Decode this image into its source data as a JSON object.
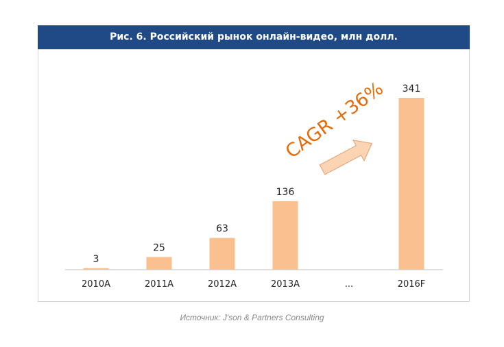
{
  "chart_data": {
    "type": "bar",
    "title": "Рис. 6. Российский рынок онлайн-видео, млн долл.",
    "categories": [
      "2010A",
      "2011A",
      "2012A",
      "2013A",
      "...",
      "2016F"
    ],
    "values": [
      3,
      25,
      63,
      136,
      null,
      341
    ],
    "xlabel": "",
    "ylabel": "",
    "ylim": [
      0,
      341
    ],
    "annotation": "CAGR +36%",
    "source": "Источник: J'son & Partners Consulting",
    "bar_color": "#fac090",
    "annotation_color": "#e46c0a"
  }
}
